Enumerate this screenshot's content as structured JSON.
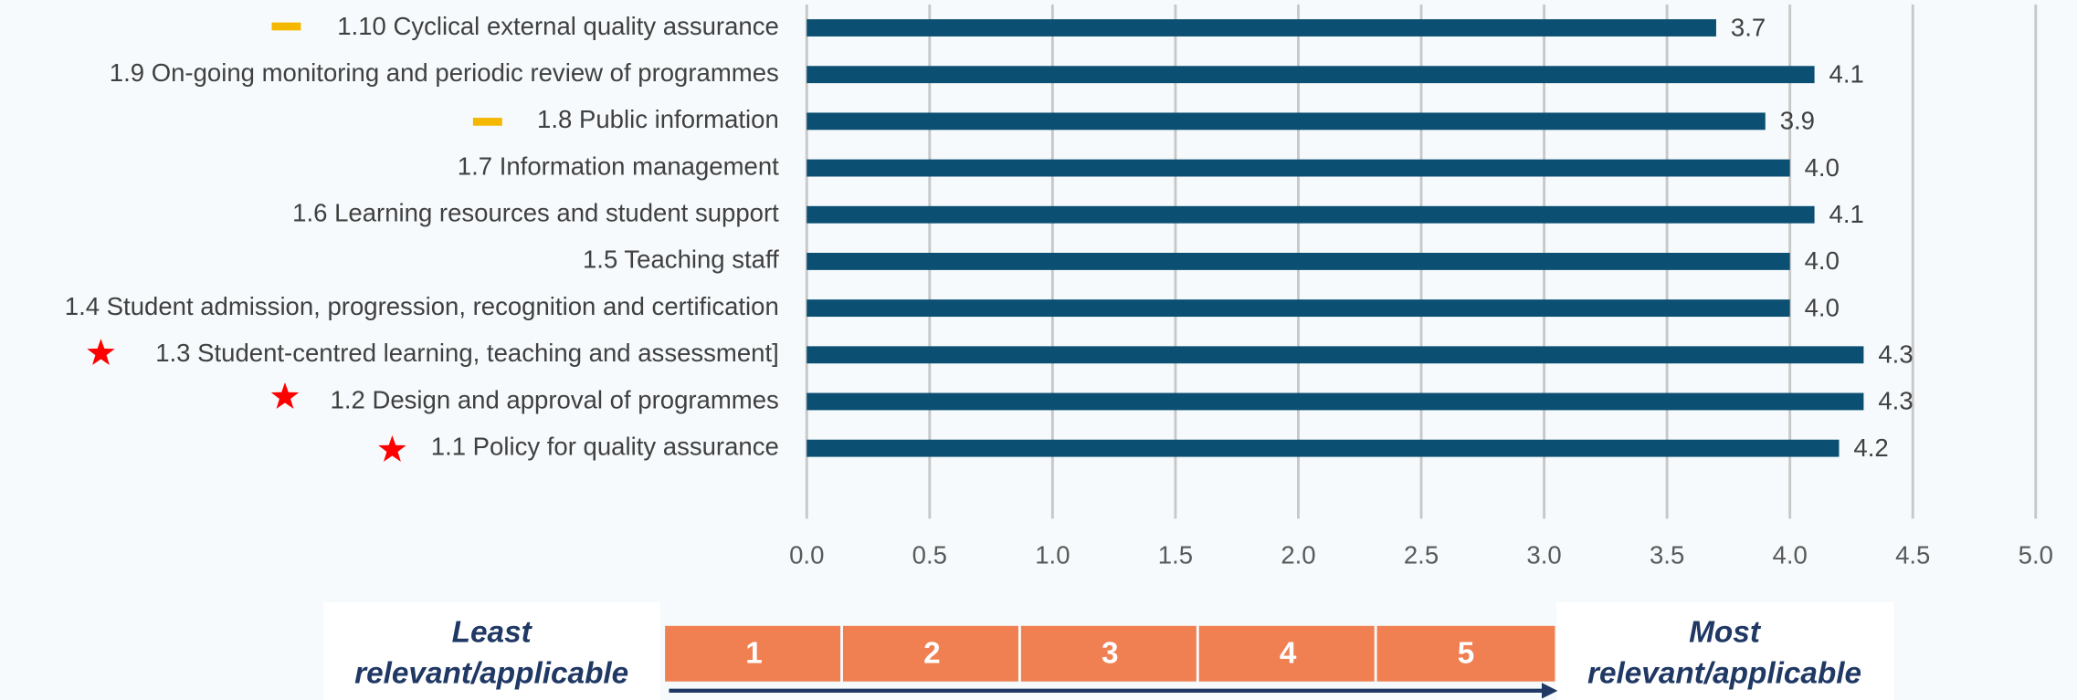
{
  "chart_data": {
    "type": "barh",
    "categories": [
      "1.10 Cyclical external quality assurance",
      "1.9 On-going monitoring and periodic review of programmes",
      "1.8 Public information",
      "1.7 Information management",
      "1.6 Learning resources and student support",
      "1.5 Teaching staff",
      "1.4 Student admission, progression, recognition and certification",
      "1.3 Student-centred learning, teaching and assessment]",
      "1.2 Design and approval of programmes",
      "1.1 Policy for quality assurance"
    ],
    "values": [
      3.7,
      4.1,
      3.9,
      4.0,
      4.1,
      4.0,
      4.0,
      4.3,
      4.3,
      4.2
    ],
    "value_labels": [
      "3.7",
      "4.1",
      "3.9",
      "4.0",
      "4.1",
      "4.0",
      "4.0",
      "4.3",
      "4.3",
      "4.2"
    ],
    "color": "#0b4f72",
    "xlim": [
      0,
      5
    ],
    "xticks": [
      {
        "value": 0,
        "label": "0.0"
      },
      {
        "value": 0.5,
        "label": "0.5"
      },
      {
        "value": 1,
        "label": "1.0"
      },
      {
        "value": 1.5,
        "label": "1.5"
      },
      {
        "value": 2,
        "label": "2.0"
      },
      {
        "value": 2.5,
        "label": "2.5"
      },
      {
        "value": 3,
        "label": "3.0"
      },
      {
        "value": 3.5,
        "label": "3.5"
      },
      {
        "value": 4,
        "label": "4.0"
      },
      {
        "value": 4.5,
        "label": "4.5"
      },
      {
        "value": 5,
        "label": "5.0"
      }
    ],
    "grid": true,
    "scale": {
      "left_label": [
        "Least",
        "relevant/applicable"
      ],
      "right_label": [
        "Most",
        "relevant/applicable"
      ],
      "steps": [
        "1",
        "2",
        "3",
        "4",
        "5"
      ],
      "color": "#f07f52"
    }
  }
}
